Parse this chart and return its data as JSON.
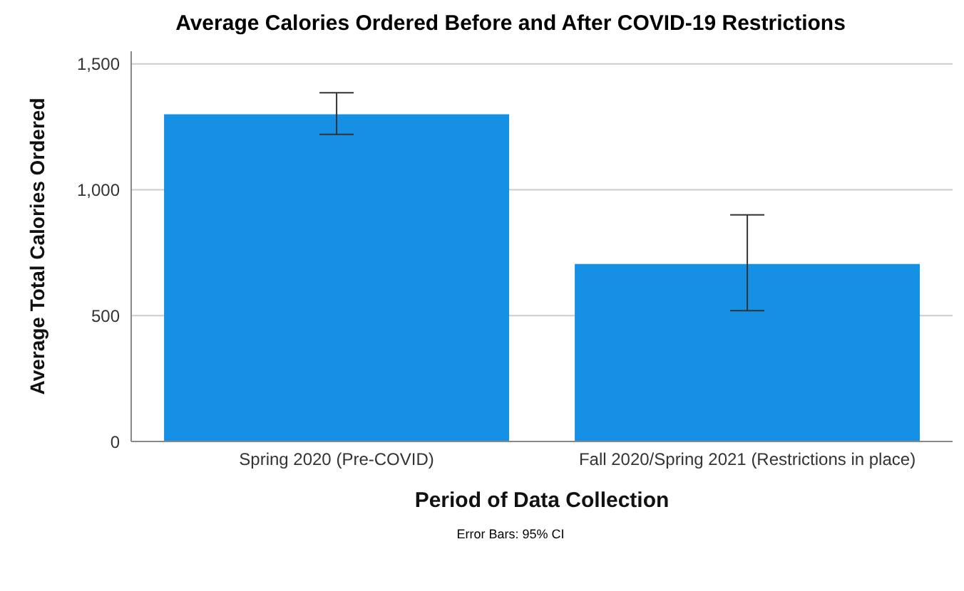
{
  "chart_data": {
    "type": "bar",
    "title": "Average Calories Ordered Before and After COVID-19 Restrictions",
    "xlabel": "Period of Data Collection",
    "ylabel": "Average Total Calories Ordered",
    "annotations": [
      "Error Bars: 95% CI"
    ],
    "categories": [
      "Spring 2020 (Pre-COVID)",
      "Fall 2020/Spring 2021 (Restrictions in place)"
    ],
    "values": [
      1300,
      705
    ],
    "errors": [
      [
        1220,
        1385
      ],
      [
        520,
        900
      ]
    ],
    "color": "#1690e5",
    "ylim": [
      0,
      1550
    ],
    "yticks": [
      0,
      {
        "value": 500,
        "label": "500"
      },
      {
        "value": 1000,
        "label": "1,000"
      },
      {
        "value": 1500,
        "label": "1,500"
      }
    ],
    "grid": "y"
  }
}
